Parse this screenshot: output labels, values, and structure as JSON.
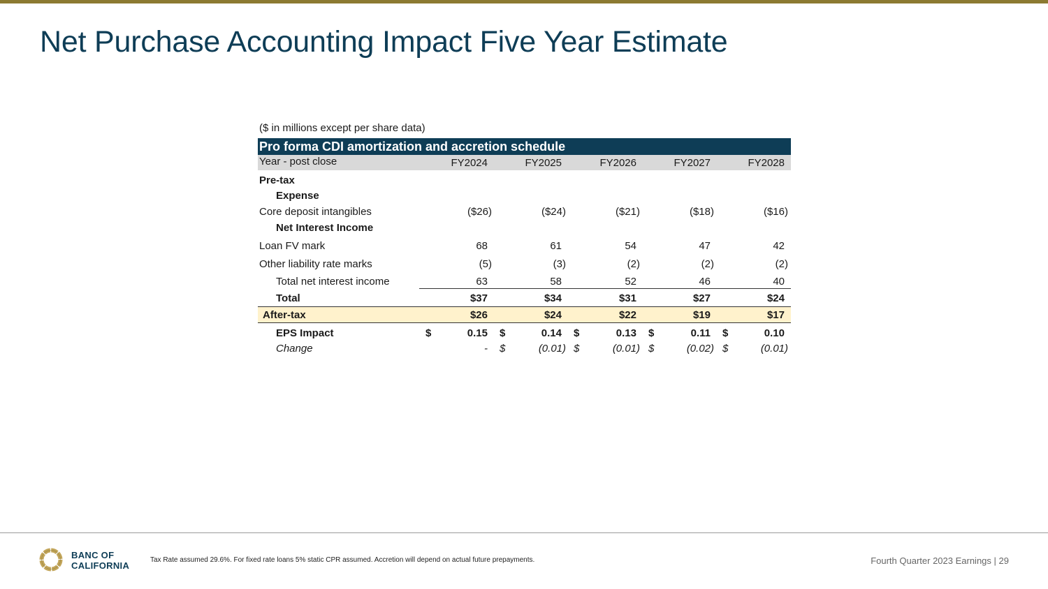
{
  "slide": {
    "title": "Net Purchase Accounting Impact Five Year Estimate",
    "units_note": "($ in millions except per share data)"
  },
  "table": {
    "header": "Pro forma CDI amortization and accretion schedule",
    "year_label": "Year - post close",
    "years": [
      "FY2024",
      "FY2025",
      "FY2026",
      "FY2027",
      "FY2028"
    ],
    "pretax_label": "Pre-tax",
    "expense_label": "Expense",
    "core_deposit": {
      "label": "Core deposit intangibles",
      "values": [
        "($26)",
        "($24)",
        "($21)",
        "($18)",
        "($16)"
      ]
    },
    "nii_label": "Net Interest Income",
    "loan_fv": {
      "label": "Loan FV mark",
      "values": [
        "68",
        "61",
        "54",
        "47",
        "42"
      ]
    },
    "other_liability": {
      "label": "Other liability rate marks",
      "values": [
        "(5)",
        "(3)",
        "(2)",
        "(2)",
        "(2)"
      ]
    },
    "total_nii": {
      "label": "Total net interest income",
      "values": [
        "63",
        "58",
        "52",
        "46",
        "40"
      ]
    },
    "total": {
      "label": "Total",
      "values": [
        "$37",
        "$34",
        "$31",
        "$27",
        "$24"
      ]
    },
    "after_tax": {
      "label": "After-tax",
      "values": [
        "$26",
        "$24",
        "$22",
        "$19",
        "$17"
      ]
    },
    "eps_impact": {
      "label": "EPS Impact",
      "currency": "$",
      "values": [
        "0.15",
        "0.14",
        "0.13",
        "0.11",
        "0.10"
      ]
    },
    "change": {
      "label": "Change",
      "currency": "$",
      "values": [
        "-",
        "(0.01)",
        "(0.01)",
        "(0.02)",
        "(0.01)"
      ]
    }
  },
  "footer": {
    "brand_line1": "BANC OF",
    "brand_line2": "CALIFORNIA",
    "footnote": "Tax Rate assumed 29.6%. For fixed rate loans 5% static CPR assumed. Accretion will depend on actual future prepayments.",
    "report_label": "Fourth Quarter 2023 Earnings |",
    "page_number": "29"
  },
  "colors": {
    "navy": "#0e3d56",
    "gold": "#8c7a32",
    "after_tax_fill": "#fff2cc",
    "year_row_fill": "#d9d9d9"
  }
}
